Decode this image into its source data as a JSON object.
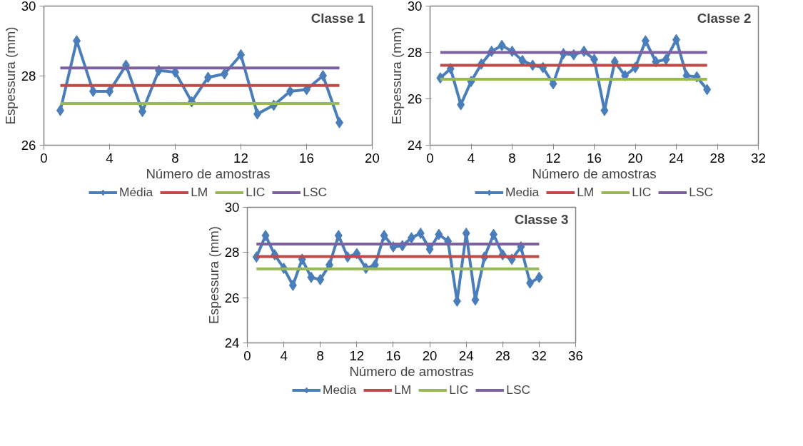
{
  "chart_data": [
    {
      "type": "line",
      "title": "Classe 1",
      "xlabel": "Número de amostras",
      "ylabel": "Espessura (mm)",
      "x": [
        1,
        2,
        3,
        4,
        5,
        6,
        7,
        8,
        9,
        10,
        11,
        12,
        13,
        14,
        15,
        16,
        17,
        18
      ],
      "xlim": [
        0,
        20
      ],
      "xticks": [
        0,
        4,
        8,
        12,
        16,
        20
      ],
      "ylim": [
        26,
        30
      ],
      "yticks": [
        26,
        28,
        30
      ],
      "grid": false,
      "legend": "bottom",
      "series": [
        {
          "name": "Média",
          "color": "#4a7ebb",
          "marker": "diamond",
          "values": [
            27.0,
            29.0,
            27.55,
            27.55,
            28.3,
            26.97,
            28.15,
            28.1,
            27.25,
            27.95,
            28.05,
            28.6,
            26.9,
            27.15,
            27.55,
            27.6,
            28.0,
            26.65
          ]
        },
        {
          "name": "LM",
          "color": "#be4b48",
          "marker": "none",
          "values": [
            27.72,
            27.72,
            27.72,
            27.72,
            27.72,
            27.72,
            27.72,
            27.72,
            27.72,
            27.72,
            27.72,
            27.72,
            27.72,
            27.72,
            27.72,
            27.72,
            27.72,
            27.72
          ]
        },
        {
          "name": "LIC",
          "color": "#98b954",
          "marker": "none",
          "values": [
            27.2,
            27.2,
            27.2,
            27.2,
            27.2,
            27.2,
            27.2,
            27.2,
            27.2,
            27.2,
            27.2,
            27.2,
            27.2,
            27.2,
            27.2,
            27.2,
            27.2,
            27.2
          ]
        },
        {
          "name": "LSC",
          "color": "#7d60a0",
          "marker": "none",
          "values": [
            28.22,
            28.22,
            28.22,
            28.22,
            28.22,
            28.22,
            28.22,
            28.22,
            28.22,
            28.22,
            28.22,
            28.22,
            28.22,
            28.22,
            28.22,
            28.22,
            28.22,
            28.22
          ]
        }
      ]
    },
    {
      "type": "line",
      "title": "Classe 2",
      "xlabel": "Número de amostras",
      "ylabel": "Espessura (mm)",
      "x": [
        1,
        2,
        3,
        4,
        5,
        6,
        7,
        8,
        9,
        10,
        11,
        12,
        13,
        14,
        15,
        16,
        17,
        18,
        19,
        20,
        21,
        22,
        23,
        24,
        25,
        26,
        27
      ],
      "xlim": [
        0,
        32
      ],
      "xticks": [
        0,
        4,
        8,
        12,
        16,
        20,
        24,
        28,
        32
      ],
      "ylim": [
        24,
        30
      ],
      "yticks": [
        24,
        26,
        28,
        30
      ],
      "grid": false,
      "legend": "bottom",
      "series": [
        {
          "name": "Media",
          "color": "#4a7ebb",
          "marker": "diamond",
          "values": [
            26.9,
            27.3,
            25.75,
            26.75,
            27.5,
            28.05,
            28.3,
            28.05,
            27.65,
            27.45,
            27.35,
            26.65,
            27.95,
            27.9,
            28.05,
            27.7,
            25.5,
            27.6,
            27.0,
            27.35,
            28.5,
            27.6,
            27.7,
            28.55,
            27.0,
            26.95,
            26.4
          ]
        },
        {
          "name": "LM",
          "color": "#be4b48",
          "marker": "none",
          "values": [
            27.45,
            27.45,
            27.45,
            27.45,
            27.45,
            27.45,
            27.45,
            27.45,
            27.45,
            27.45,
            27.45,
            27.45,
            27.45,
            27.45,
            27.45,
            27.45,
            27.45,
            27.45,
            27.45,
            27.45,
            27.45,
            27.45,
            27.45,
            27.45,
            27.45,
            27.45,
            27.45
          ]
        },
        {
          "name": "LIC",
          "color": "#98b954",
          "marker": "none",
          "values": [
            26.85,
            26.85,
            26.85,
            26.85,
            26.85,
            26.85,
            26.85,
            26.85,
            26.85,
            26.85,
            26.85,
            26.85,
            26.85,
            26.85,
            26.85,
            26.85,
            26.85,
            26.85,
            26.85,
            26.85,
            26.85,
            26.85,
            26.85,
            26.85,
            26.85,
            26.85,
            26.85
          ]
        },
        {
          "name": "LSC",
          "color": "#7d60a0",
          "marker": "none",
          "values": [
            28.0,
            28.0,
            28.0,
            28.0,
            28.0,
            28.0,
            28.0,
            28.0,
            28.0,
            28.0,
            28.0,
            28.0,
            28.0,
            28.0,
            28.0,
            28.0,
            28.0,
            28.0,
            28.0,
            28.0,
            28.0,
            28.0,
            28.0,
            28.0,
            28.0,
            28.0,
            28.0
          ]
        }
      ]
    },
    {
      "type": "line",
      "title": "Classe 3",
      "xlabel": "Número de amostras",
      "ylabel": "Espessura (mm)",
      "x": [
        1,
        2,
        3,
        4,
        5,
        6,
        7,
        8,
        9,
        10,
        11,
        12,
        13,
        14,
        15,
        16,
        17,
        18,
        19,
        20,
        21,
        22,
        23,
        24,
        25,
        26,
        27,
        28,
        29,
        30,
        31,
        32
      ],
      "xlim": [
        0,
        36
      ],
      "xticks": [
        0,
        4,
        8,
        12,
        16,
        20,
        24,
        28,
        32,
        36
      ],
      "ylim": [
        24,
        30
      ],
      "yticks": [
        24,
        26,
        28,
        30
      ],
      "grid": false,
      "legend": "bottom",
      "series": [
        {
          "name": "Media",
          "color": "#4a7ebb",
          "marker": "diamond",
          "values": [
            27.8,
            28.75,
            27.9,
            27.3,
            26.55,
            27.7,
            26.9,
            26.8,
            27.45,
            28.75,
            27.8,
            27.95,
            27.3,
            27.45,
            28.75,
            28.25,
            28.3,
            28.65,
            28.85,
            28.15,
            28.8,
            28.5,
            25.85,
            28.85,
            25.9,
            27.8,
            28.8,
            27.9,
            27.7,
            28.25,
            26.65,
            26.9
          ]
        },
        {
          "name": "LM",
          "color": "#be4b48",
          "marker": "none",
          "values": [
            27.82,
            27.82,
            27.82,
            27.82,
            27.82,
            27.82,
            27.82,
            27.82,
            27.82,
            27.82,
            27.82,
            27.82,
            27.82,
            27.82,
            27.82,
            27.82,
            27.82,
            27.82,
            27.82,
            27.82,
            27.82,
            27.82,
            27.82,
            27.82,
            27.82,
            27.82,
            27.82,
            27.82,
            27.82,
            27.82,
            27.82,
            27.82
          ]
        },
        {
          "name": "LIC",
          "color": "#98b954",
          "marker": "none",
          "values": [
            27.28,
            27.28,
            27.28,
            27.28,
            27.28,
            27.28,
            27.28,
            27.28,
            27.28,
            27.28,
            27.28,
            27.28,
            27.28,
            27.28,
            27.28,
            27.28,
            27.28,
            27.28,
            27.28,
            27.28,
            27.28,
            27.28,
            27.28,
            27.28,
            27.28,
            27.28,
            27.28,
            27.28,
            27.28,
            27.28,
            27.28,
            27.28
          ]
        },
        {
          "name": "LSC",
          "color": "#7d60a0",
          "marker": "none",
          "values": [
            28.37,
            28.37,
            28.37,
            28.37,
            28.37,
            28.37,
            28.37,
            28.37,
            28.37,
            28.37,
            28.37,
            28.37,
            28.37,
            28.37,
            28.37,
            28.37,
            28.37,
            28.37,
            28.37,
            28.37,
            28.37,
            28.37,
            28.37,
            28.37,
            28.37,
            28.37,
            28.37,
            28.37,
            28.37,
            28.37,
            28.37,
            28.37
          ]
        }
      ]
    }
  ]
}
